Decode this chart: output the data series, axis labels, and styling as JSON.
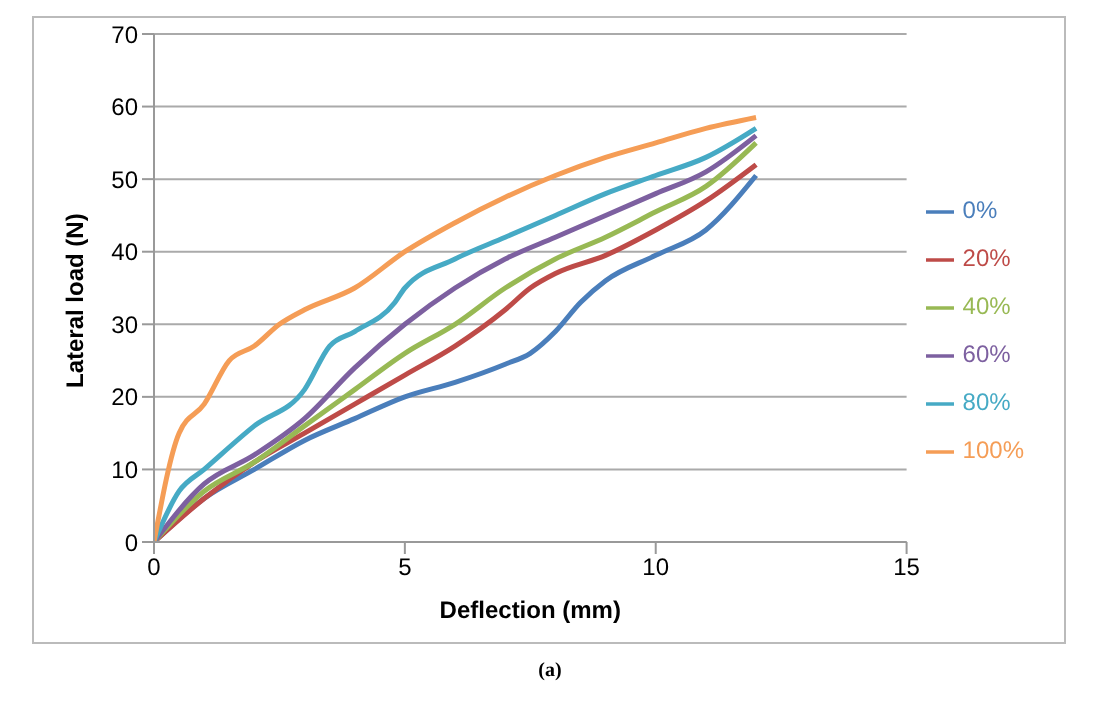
{
  "chart_data": {
    "type": "line",
    "xlabel": "Deflection (mm)",
    "ylabel": "Lateral load (N)",
    "xlim": [
      0,
      15
    ],
    "xticks": [
      0,
      5,
      10,
      15
    ],
    "ylim": [
      0,
      70
    ],
    "yticks": [
      0,
      10,
      20,
      30,
      40,
      50,
      60,
      70
    ],
    "grid": "y",
    "legend": "right",
    "marker": "none",
    "annotations": [
      "(a)"
    ],
    "series": [
      {
        "name": "0%",
        "color": "#4a7ebb",
        "x": [
          0,
          1,
          2,
          3,
          4,
          5,
          6,
          7,
          7.5,
          8,
          8.5,
          9,
          10,
          11,
          12
        ],
        "values": [
          0,
          6,
          10,
          14,
          17,
          20,
          22,
          24.5,
          26,
          29,
          33,
          36,
          39.5,
          43,
          50.5
        ]
      },
      {
        "name": "20%",
        "color": "#be4b48",
        "x": [
          0,
          1,
          2,
          3,
          4,
          5,
          6,
          7,
          7.5,
          8,
          9,
          10,
          11,
          12
        ],
        "values": [
          0,
          6,
          11,
          15,
          19,
          23,
          27,
          32,
          35,
          37,
          39.5,
          43,
          47,
          52
        ]
      },
      {
        "name": "40%",
        "color": "#98b954",
        "x": [
          0,
          1,
          2,
          3,
          4,
          5,
          6,
          7,
          8,
          9,
          10,
          11,
          12
        ],
        "values": [
          0,
          7,
          11,
          16,
          21,
          26,
          30,
          35,
          39,
          42,
          45.5,
          49,
          55
        ]
      },
      {
        "name": "60%",
        "color": "#7d60a0",
        "x": [
          0,
          1,
          2,
          3,
          4,
          5,
          6,
          7,
          8,
          9,
          10,
          11,
          12
        ],
        "values": [
          0,
          8,
          12,
          17,
          24,
          30,
          35,
          39,
          42,
          45,
          48,
          51,
          56
        ]
      },
      {
        "name": "80%",
        "color": "#46aac5",
        "x": [
          0,
          0.5,
          1,
          2,
          3,
          3.5,
          4,
          4.8,
          5,
          6,
          7,
          8,
          9,
          10,
          11,
          12
        ],
        "values": [
          0,
          7,
          10,
          16,
          21,
          27,
          29,
          33,
          35,
          39,
          42,
          45,
          48,
          50.5,
          53,
          57
        ]
      },
      {
        "name": "100%",
        "color": "#f59d56",
        "x": [
          0,
          0.5,
          1,
          1.5,
          2,
          2.5,
          3,
          4,
          5,
          6,
          7,
          8,
          9,
          10,
          11,
          12
        ],
        "values": [
          0,
          15,
          19,
          25,
          27,
          30,
          32,
          35,
          40,
          44,
          47.5,
          50.5,
          53,
          55,
          57,
          58.5
        ]
      }
    ]
  }
}
